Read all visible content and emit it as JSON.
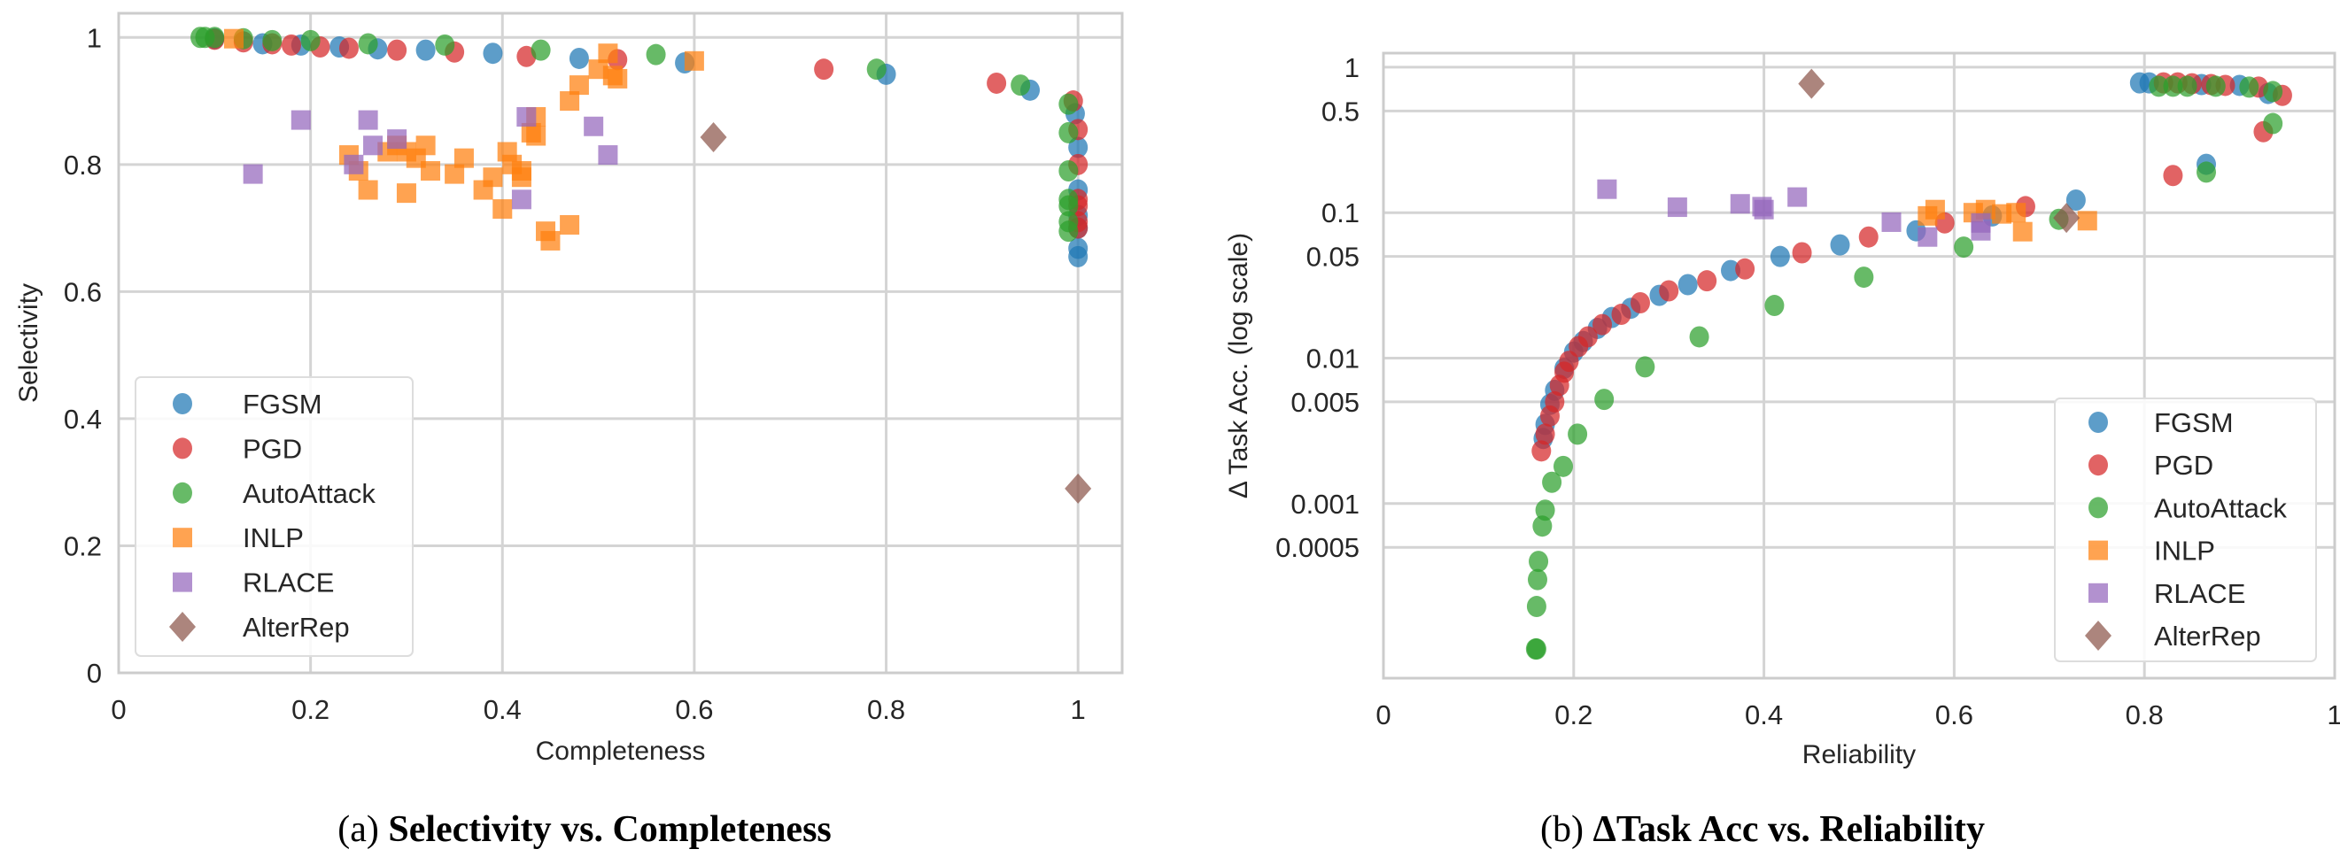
{
  "colors": {
    "FGSM": "#1f77b4",
    "PGD": "#d62728",
    "AutoAttack": "#2ca02c",
    "INLP": "#ff7f0e",
    "RLACE": "#9467bd",
    "AlterRep": "#8c564b",
    "grid": "#d4d4d4"
  },
  "chart_data": [
    {
      "type": "scatter",
      "caption_prefix": "(a) ",
      "caption": "Selectivity vs. Completeness",
      "xlabel": "Completeness",
      "ylabel": "Selectivity",
      "xlim": [
        0,
        1.046
      ],
      "ylim": [
        0,
        1.038
      ],
      "xticks": [
        0,
        0.2,
        0.4,
        0.6,
        0.8,
        1
      ],
      "xtick_labels": [
        "0",
        "0.2",
        "0.4",
        "0.6",
        "0.8",
        "1"
      ],
      "yticks": [
        0,
        0.2,
        0.4,
        0.6,
        0.8,
        1
      ],
      "ytick_labels": [
        "0",
        "0.2",
        "0.4",
        "0.6",
        "0.8",
        "1"
      ],
      "grid": true,
      "legend_position": "bottom-left",
      "series": [
        {
          "name": "FGSM",
          "marker": "circle",
          "points": [
            [
              0.1,
              0.998
            ],
            [
              0.15,
              0.99
            ],
            [
              0.19,
              0.988
            ],
            [
              0.23,
              0.985
            ],
            [
              0.27,
              0.982
            ],
            [
              0.32,
              0.98
            ],
            [
              0.39,
              0.975
            ],
            [
              0.48,
              0.967
            ],
            [
              0.59,
              0.96
            ],
            [
              0.8,
              0.942
            ],
            [
              0.95,
              0.917
            ],
            [
              0.997,
              0.88
            ],
            [
              1.0,
              0.827
            ],
            [
              1.0,
              0.76
            ],
            [
              1.0,
              0.72
            ],
            [
              1.0,
              0.7
            ],
            [
              1.0,
              0.668
            ],
            [
              1.0,
              0.655
            ]
          ]
        },
        {
          "name": "PGD",
          "marker": "circle",
          "points": [
            [
              0.1,
              0.997
            ],
            [
              0.13,
              0.993
            ],
            [
              0.16,
              0.99
            ],
            [
              0.18,
              0.988
            ],
            [
              0.21,
              0.985
            ],
            [
              0.24,
              0.983
            ],
            [
              0.29,
              0.98
            ],
            [
              0.35,
              0.977
            ],
            [
              0.425,
              0.97
            ],
            [
              0.52,
              0.965
            ],
            [
              0.735,
              0.95
            ],
            [
              0.915,
              0.928
            ],
            [
              0.995,
              0.9
            ],
            [
              1.0,
              0.855
            ],
            [
              1.0,
              0.8
            ],
            [
              1.0,
              0.745
            ],
            [
              1.0,
              0.735
            ],
            [
              1.0,
              0.71
            ],
            [
              1.0,
              0.7
            ]
          ]
        },
        {
          "name": "AutoAttack",
          "marker": "circle",
          "points": [
            [
              0.085,
              1.0
            ],
            [
              0.09,
              1.0
            ],
            [
              0.1,
              1.0
            ],
            [
              0.13,
              0.998
            ],
            [
              0.16,
              0.995
            ],
            [
              0.2,
              0.995
            ],
            [
              0.26,
              0.99
            ],
            [
              0.34,
              0.988
            ],
            [
              0.44,
              0.98
            ],
            [
              0.56,
              0.973
            ],
            [
              0.79,
              0.95
            ],
            [
              0.94,
              0.925
            ],
            [
              0.99,
              0.895
            ],
            [
              0.99,
              0.85
            ],
            [
              0.99,
              0.79
            ],
            [
              0.99,
              0.745
            ],
            [
              0.99,
              0.735
            ],
            [
              0.99,
              0.71
            ],
            [
              0.99,
              0.695
            ]
          ]
        },
        {
          "name": "INLP",
          "marker": "square",
          "points": [
            [
              0.12,
              0.998
            ],
            [
              0.24,
              0.815
            ],
            [
              0.25,
              0.79
            ],
            [
              0.26,
              0.76
            ],
            [
              0.28,
              0.82
            ],
            [
              0.29,
              0.83
            ],
            [
              0.3,
              0.82
            ],
            [
              0.3,
              0.755
            ],
            [
              0.31,
              0.81
            ],
            [
              0.32,
              0.83
            ],
            [
              0.325,
              0.79
            ],
            [
              0.35,
              0.785
            ],
            [
              0.36,
              0.81
            ],
            [
              0.38,
              0.76
            ],
            [
              0.39,
              0.78
            ],
            [
              0.4,
              0.73
            ],
            [
              0.405,
              0.82
            ],
            [
              0.41,
              0.8
            ],
            [
              0.42,
              0.79
            ],
            [
              0.42,
              0.78
            ],
            [
              0.43,
              0.85
            ],
            [
              0.435,
              0.845
            ],
            [
              0.435,
              0.875
            ],
            [
              0.445,
              0.695
            ],
            [
              0.45,
              0.68
            ],
            [
              0.47,
              0.705
            ],
            [
              0.47,
              0.9
            ],
            [
              0.48,
              0.925
            ],
            [
              0.5,
              0.95
            ],
            [
              0.51,
              0.975
            ],
            [
              0.515,
              0.94
            ],
            [
              0.52,
              0.935
            ],
            [
              0.6,
              0.963
            ]
          ]
        },
        {
          "name": "RLACE",
          "marker": "square",
          "points": [
            [
              0.14,
              0.785
            ],
            [
              0.19,
              0.87
            ],
            [
              0.245,
              0.8
            ],
            [
              0.26,
              0.87
            ],
            [
              0.265,
              0.83
            ],
            [
              0.29,
              0.84
            ],
            [
              0.42,
              0.745
            ],
            [
              0.425,
              0.875
            ],
            [
              0.495,
              0.86
            ],
            [
              0.51,
              0.815
            ]
          ]
        },
        {
          "name": "AlterRep",
          "marker": "diamond",
          "points": [
            [
              0.62,
              0.843
            ],
            [
              1.0,
              0.29
            ]
          ]
        }
      ]
    },
    {
      "type": "scatter",
      "caption_prefix": "(b) ",
      "caption": "ΔTask Acc vs. Reliability",
      "xlabel": "Reliability",
      "ylabel": "Δ Task Acc. (log scale)",
      "yscale": "log",
      "xlim": [
        0,
        1
      ],
      "ylim": [
        6.3e-05,
        1.25
      ],
      "xticks": [
        0,
        0.2,
        0.4,
        0.6,
        0.8,
        1
      ],
      "xtick_labels": [
        "0",
        "0.2",
        "0.4",
        "0.6",
        "0.8",
        "1"
      ],
      "yticks": [
        1,
        0.5,
        0.1,
        0.05,
        0.01,
        0.005,
        0.001,
        0.0005
      ],
      "ytick_labels": [
        "1",
        "0.5",
        "0.1",
        "0.05",
        "0.01",
        "0.005",
        "0.001",
        "0.0005"
      ],
      "grid": true,
      "legend_position": "bottom-right",
      "series": [
        {
          "name": "FGSM",
          "marker": "circle",
          "points": [
            [
              0.168,
              0.0028
            ],
            [
              0.17,
              0.0035
            ],
            [
              0.175,
              0.0048
            ],
            [
              0.18,
              0.006
            ],
            [
              0.19,
              0.0085
            ],
            [
              0.2,
              0.011
            ],
            [
              0.21,
              0.013
            ],
            [
              0.225,
              0.016
            ],
            [
              0.24,
              0.019
            ],
            [
              0.26,
              0.022
            ],
            [
              0.29,
              0.027
            ],
            [
              0.32,
              0.032
            ],
            [
              0.365,
              0.04
            ],
            [
              0.417,
              0.05
            ],
            [
              0.48,
              0.06
            ],
            [
              0.56,
              0.075
            ],
            [
              0.64,
              0.095
            ],
            [
              0.728,
              0.122
            ],
            [
              0.865,
              0.215
            ],
            [
              0.795,
              0.78
            ],
            [
              0.805,
              0.78
            ],
            [
              0.86,
              0.76
            ],
            [
              0.9,
              0.75
            ],
            [
              0.93,
              0.66
            ]
          ]
        },
        {
          "name": "PGD",
          "marker": "circle",
          "points": [
            [
              0.166,
              0.0023
            ],
            [
              0.17,
              0.003
            ],
            [
              0.175,
              0.004
            ],
            [
              0.18,
              0.005
            ],
            [
              0.185,
              0.0065
            ],
            [
              0.19,
              0.008
            ],
            [
              0.195,
              0.0095
            ],
            [
              0.205,
              0.012
            ],
            [
              0.215,
              0.014
            ],
            [
              0.23,
              0.017
            ],
            [
              0.25,
              0.02
            ],
            [
              0.27,
              0.024
            ],
            [
              0.3,
              0.029
            ],
            [
              0.34,
              0.034
            ],
            [
              0.38,
              0.041
            ],
            [
              0.44,
              0.053
            ],
            [
              0.51,
              0.068
            ],
            [
              0.59,
              0.085
            ],
            [
              0.675,
              0.11
            ],
            [
              0.83,
              0.18
            ],
            [
              0.925,
              0.36
            ],
            [
              0.82,
              0.78
            ],
            [
              0.835,
              0.78
            ],
            [
              0.85,
              0.77
            ],
            [
              0.87,
              0.76
            ],
            [
              0.885,
              0.75
            ],
            [
              0.92,
              0.73
            ],
            [
              0.945,
              0.64
            ]
          ]
        },
        {
          "name": "AutoAttack",
          "marker": "circle",
          "points": [
            [
              0.16,
              0.0001
            ],
            [
              0.161,
              0.0001
            ],
            [
              0.161,
              0.000196
            ],
            [
              0.162,
              0.0003
            ],
            [
              0.163,
              0.0004
            ],
            [
              0.167,
              0.0007
            ],
            [
              0.17,
              0.0009
            ],
            [
              0.177,
              0.0014
            ],
            [
              0.189,
              0.0018
            ],
            [
              0.204,
              0.003
            ],
            [
              0.232,
              0.0052
            ],
            [
              0.275,
              0.0087
            ],
            [
              0.332,
              0.014
            ],
            [
              0.411,
              0.023
            ],
            [
              0.505,
              0.036
            ],
            [
              0.61,
              0.058
            ],
            [
              0.71,
              0.09
            ],
            [
              0.865,
              0.19
            ],
            [
              0.935,
              0.41
            ],
            [
              0.815,
              0.74
            ],
            [
              0.83,
              0.74
            ],
            [
              0.845,
              0.74
            ],
            [
              0.875,
              0.74
            ],
            [
              0.91,
              0.73
            ],
            [
              0.935,
              0.68
            ]
          ]
        },
        {
          "name": "INLP",
          "marker": "square",
          "points": [
            [
              0.572,
              0.095
            ],
            [
              0.58,
              0.105
            ],
            [
              0.62,
              0.1
            ],
            [
              0.633,
              0.105
            ],
            [
              0.65,
              0.098
            ],
            [
              0.665,
              0.1
            ],
            [
              0.672,
              0.074
            ],
            [
              0.74,
              0.088
            ]
          ]
        },
        {
          "name": "RLACE",
          "marker": "square",
          "points": [
            [
              0.235,
              0.145
            ],
            [
              0.309,
              0.109
            ],
            [
              0.375,
              0.115
            ],
            [
              0.398,
              0.11
            ],
            [
              0.4,
              0.105
            ],
            [
              0.435,
              0.128
            ],
            [
              0.534,
              0.086
            ],
            [
              0.572,
              0.068
            ],
            [
              0.628,
              0.085
            ],
            [
              0.628,
              0.075
            ]
          ]
        },
        {
          "name": "AlterRep",
          "marker": "diamond",
          "points": [
            [
              0.45,
              0.77
            ],
            [
              0.718,
              0.092
            ]
          ]
        }
      ]
    }
  ]
}
